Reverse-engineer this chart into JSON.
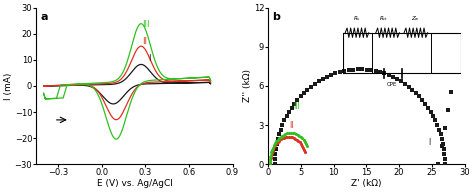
{
  "panel_a": {
    "title": "a",
    "xlabel": "E (V) vs. Ag/AgCl",
    "ylabel": "I (mA)",
    "xlim": [
      -0.45,
      0.9
    ],
    "ylim": [
      -30,
      30
    ],
    "xticks": [
      -0.3,
      0.0,
      0.3,
      0.6,
      0.9
    ],
    "yticks": [
      -30,
      -20,
      -10,
      0,
      10,
      20,
      30
    ]
  },
  "panel_b": {
    "title": "b",
    "xlabel": "Z' (kΩ)",
    "ylabel": "Z'' (kΩ)",
    "xlim": [
      0,
      30
    ],
    "ylim": [
      0,
      12
    ],
    "xticks": [
      0,
      5,
      10,
      15,
      20,
      25,
      30
    ],
    "yticks": [
      0,
      3,
      6,
      9,
      12
    ]
  },
  "colors": {
    "black": "#1a1a1a",
    "red": "#e03020",
    "green": "#30c020",
    "dark_gray": "#333333"
  }
}
